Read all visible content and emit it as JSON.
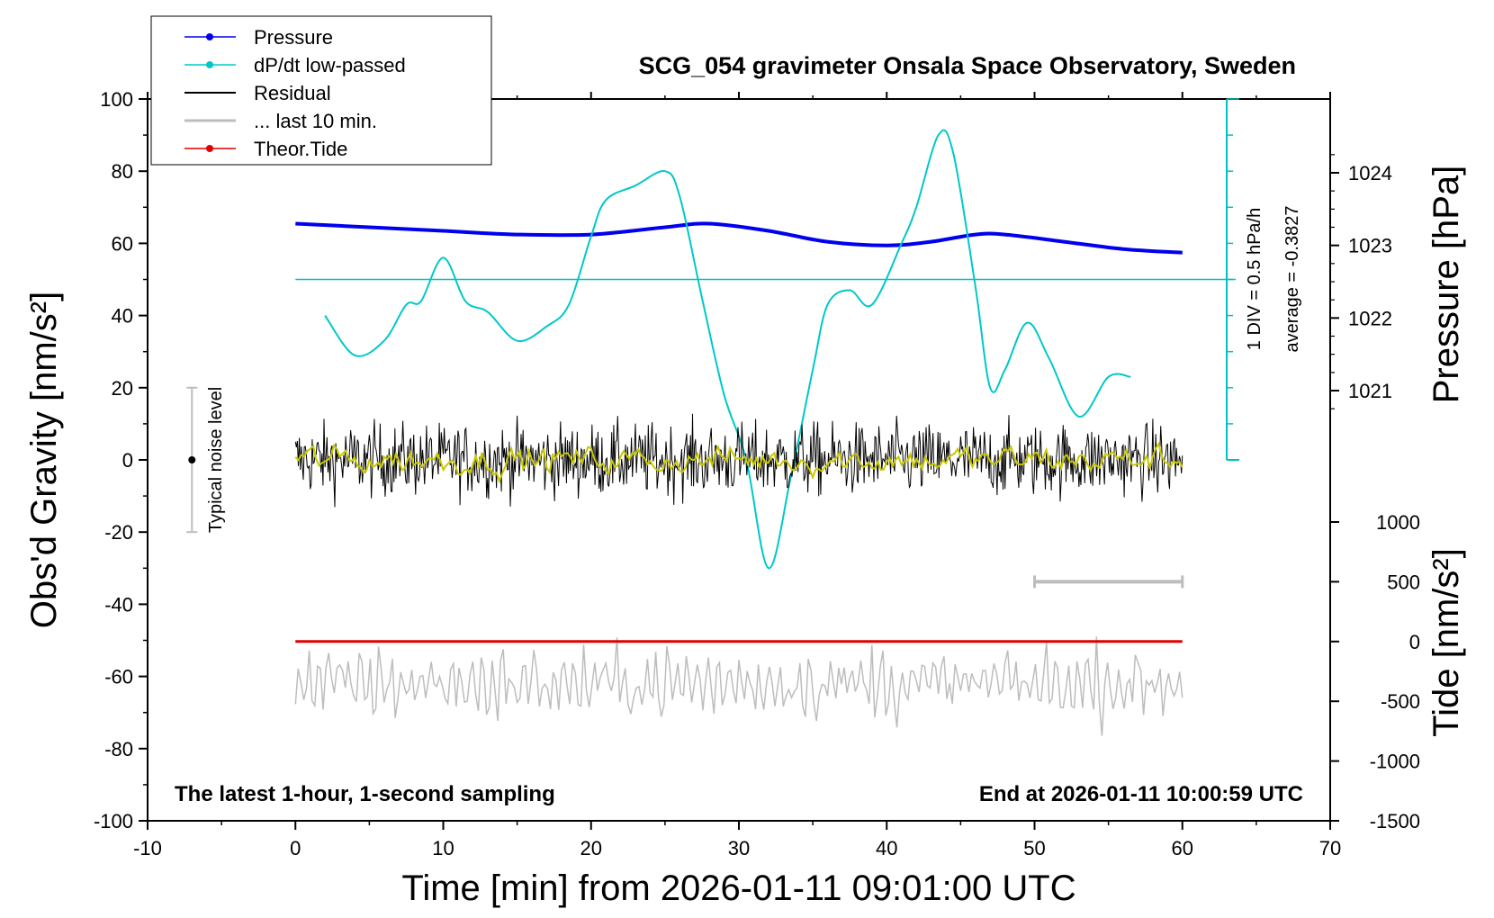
{
  "chart_data": {
    "type": "line",
    "title": "SCG_054 gravimeter Onsala Space Observatory, Sweden",
    "xlabel": "Time [min] from 2026-01-11 09:01:00 UTC",
    "ylabel_left": "Obs'd Gravity [nm/s²]",
    "ylabel_right_upper": "Pressure [hPa]",
    "ylabel_right_lower": "Tide [nm/s²]",
    "xlim": [
      -10,
      70
    ],
    "x_ticks": [
      "-10",
      "0",
      "10",
      "20",
      "30",
      "40",
      "50",
      "60",
      "70"
    ],
    "ylim_left": [
      -100,
      100
    ],
    "y_ticks_left": [
      "100",
      "80",
      "60",
      "40",
      "20",
      "0",
      "-20",
      "-40",
      "-60",
      "-80",
      "-100"
    ],
    "pressure_axis": {
      "ticks": [
        "1024",
        "1023",
        "1022",
        "1021"
      ],
      "values": [
        1024,
        1023,
        1022,
        1021
      ]
    },
    "tide_axis": {
      "ticks": [
        "1000",
        "500",
        "0",
        "-500",
        "-1000",
        "-1500"
      ],
      "values": [
        1000,
        500,
        0,
        -500,
        -1000,
        -1500
      ]
    },
    "legend": {
      "position": "top-left",
      "items": [
        {
          "label": "Pressure",
          "color": "#0000ee",
          "marker": "dot"
        },
        {
          "label": "dP/dt low-passed",
          "color": "#00c8c8",
          "marker": "dot"
        },
        {
          "label": "Residual",
          "color": "#000000",
          "marker": "line"
        },
        {
          "label": "... last 10 min.",
          "color": "#bdbdbd",
          "marker": "line"
        },
        {
          "label": "Theor.Tide",
          "color": "#e00000",
          "marker": "dot"
        }
      ]
    },
    "annotations": {
      "scale_note": "1 DIV = 0.5 hPa/h",
      "average_note": "average = -0.3827",
      "noise_label": "Typical noise level",
      "footer_left": "The latest 1-hour, 1-second sampling",
      "footer_right": "End at 2026-01-11 10:00:59 UTC"
    },
    "noise_bar": {
      "x": -7,
      "center": 0,
      "range": [
        -20,
        20
      ]
    },
    "last10_bar": {
      "x_range": [
        50,
        60
      ],
      "tide_value": 500
    },
    "series": [
      {
        "name": "Pressure",
        "axis": "pressure",
        "color": "#0000ee",
        "x": [
          0,
          5,
          10,
          15,
          20,
          25,
          28,
          32,
          36,
          40,
          43,
          46,
          48,
          52,
          56,
          60
        ],
        "values": [
          1023.3,
          1023.25,
          1023.2,
          1023.15,
          1023.15,
          1023.25,
          1023.3,
          1023.2,
          1023.05,
          1023.0,
          1023.05,
          1023.15,
          1023.15,
          1023.05,
          1022.95,
          1022.9
        ]
      },
      {
        "name": "dP/dt low-passed",
        "axis": "left",
        "color": "#00c8c8",
        "x": [
          2,
          4,
          6,
          7.5,
          8.5,
          10,
          11.5,
          13,
          15,
          17,
          18.5,
          20,
          21,
          23,
          25,
          26,
          27.5,
          29,
          30.5,
          32,
          33.5,
          35,
          36,
          37.5,
          39,
          41,
          42,
          43.5,
          44.5,
          46,
          47,
          48,
          49.5,
          51,
          53,
          55,
          56.5
        ],
        "values": [
          40,
          29,
          33,
          43,
          44,
          56,
          44,
          41,
          33,
          37,
          43,
          62,
          72,
          76,
          80,
          73,
          45,
          18,
          0,
          -30,
          -5,
          25,
          43,
          47,
          43,
          60,
          70,
          90,
          85,
          48,
          20,
          25,
          38,
          28,
          12,
          23,
          23
        ]
      },
      {
        "name": "Residual",
        "axis": "left",
        "color": "#000000",
        "x_range": [
          0,
          60
        ],
        "center": 0,
        "amplitude": 12,
        "smoothed_color": "#c8c800"
      },
      {
        "name": "... last 10 min.",
        "axis": "left",
        "color": "#bdbdbd",
        "x_range": [
          0,
          60
        ],
        "center": -62,
        "amplitude": 12
      },
      {
        "name": "Theor.Tide",
        "axis": "tide",
        "color": "#e00000",
        "x": [
          0,
          60
        ],
        "values": [
          0,
          0
        ]
      }
    ],
    "dpdt_reference": {
      "value": 50,
      "range": [
        0,
        63
      ]
    },
    "dpdt_scale_axis": {
      "x": 63,
      "range": [
        0,
        100
      ],
      "div_count": 10
    }
  }
}
